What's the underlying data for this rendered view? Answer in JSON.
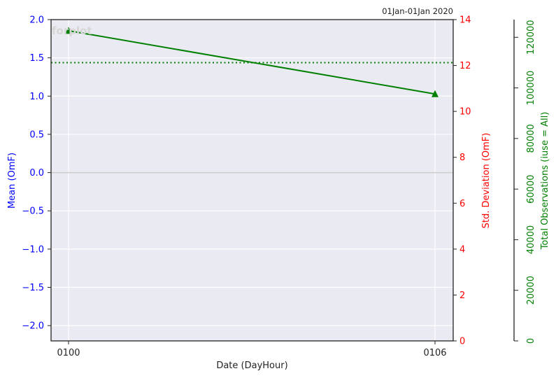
{
  "chart_data": {
    "type": "line",
    "title": "",
    "date_range": "01Jan-01Jan 2020",
    "watermark": "forplot",
    "xlabel": "Date (DayHour)",
    "categories": [
      "0100",
      "0106"
    ],
    "y_left": {
      "label": "Mean (OmF)",
      "color": "#0000ff",
      "ylim": [
        -2.2,
        2.0
      ],
      "ticks": [
        "−2.0",
        "−1.5",
        "−1.0",
        "−0.5",
        "0.0",
        "0.5",
        "1.0",
        "1.5",
        "2.0"
      ],
      "tick_values": [
        -2.0,
        -1.5,
        -1.0,
        -0.5,
        0.0,
        0.5,
        1.0,
        1.5,
        2.0
      ]
    },
    "y_right": {
      "label": "Std. Deviation (OmF)",
      "color": "#ff0000",
      "ylim": [
        0,
        14
      ],
      "ticks": [
        "0",
        "2",
        "4",
        "6",
        "8",
        "10",
        "12",
        "14"
      ],
      "tick_values": [
        0,
        2,
        4,
        6,
        8,
        10,
        12,
        14
      ]
    },
    "y_count": {
      "label": "Total Observations (iuse = All)",
      "color": "#008000",
      "ylim": [
        0,
        127000
      ],
      "ticks": [
        "0",
        "20000",
        "40000",
        "60000",
        "80000",
        "100000",
        "120000"
      ],
      "tick_values": [
        0,
        20000,
        40000,
        60000,
        80000,
        100000,
        120000
      ]
    },
    "series": [
      {
        "axis": "y_count",
        "color": "#008000",
        "marker": "triangle",
        "values": [
          122600,
          97600
        ]
      },
      {
        "axis": "y_count",
        "color": "#008000",
        "style": "dotted",
        "values": [
          110000,
          110000
        ]
      }
    ],
    "zero_line": 0.0,
    "grid": true,
    "background": "#eaeaf2"
  }
}
